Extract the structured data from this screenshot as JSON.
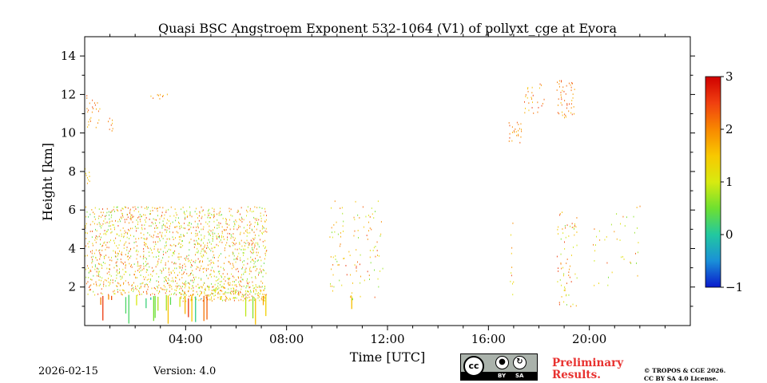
{
  "chart_data": {
    "type": "heatmap",
    "title": "Quasi BSC Angstroem Exponent 532-1064 (V1) of pollyxt_cge at Evora",
    "xlabel": "Time [UTC]",
    "ylabel": "Height [km]",
    "xlim_hours": [
      0,
      24
    ],
    "ylim_km": [
      0,
      15
    ],
    "x_ticks": [
      {
        "h": 4,
        "label": "04:00"
      },
      {
        "h": 8,
        "label": "08:00"
      },
      {
        "h": 12,
        "label": "12:00"
      },
      {
        "h": 16,
        "label": "16:00"
      },
      {
        "h": 20,
        "label": "20:00"
      }
    ],
    "y_ticks": [
      2,
      4,
      6,
      8,
      10,
      12,
      14
    ],
    "colorbar": {
      "min": -1,
      "max": 3,
      "ticks": [
        -1,
        0,
        1,
        2,
        3
      ],
      "tick_labels": [
        "−1",
        "0",
        "1",
        "2",
        "3"
      ],
      "colormap": [
        "#0a1acc",
        "#1a90d8",
        "#22c8a0",
        "#6ee030",
        "#d8ea10",
        "#f8c800",
        "#f88800",
        "#f04010",
        "#d00000"
      ]
    },
    "regions": [
      {
        "t": [
          0.0,
          7.2
        ],
        "h": [
          1.6,
          6.2
        ],
        "density": 0.5,
        "value": [
          0.3,
          2.6
        ],
        "style": "scatter"
      },
      {
        "t": [
          3.8,
          7.2
        ],
        "h": [
          1.3,
          2.1
        ],
        "density": 0.7,
        "value": [
          0.5,
          2.5
        ],
        "style": "dense"
      },
      {
        "t": [
          0.6,
          7.2
        ],
        "h": [
          0.0,
          1.6
        ],
        "density": 0.25,
        "value": [
          -0.5,
          2.7
        ],
        "style": "streaks"
      },
      {
        "t": [
          0.05,
          0.6
        ],
        "h": [
          10.3,
          12.0
        ],
        "density": 0.3,
        "value": [
          1.5,
          2.5
        ],
        "style": "scatter"
      },
      {
        "t": [
          0.9,
          1.1
        ],
        "h": [
          10.1,
          10.8
        ],
        "density": 0.5,
        "value": [
          1.5,
          2.5
        ],
        "style": "scatter"
      },
      {
        "t": [
          0.0,
          0.2
        ],
        "h": [
          7.4,
          8.3
        ],
        "density": 0.6,
        "value": [
          1.2,
          2.0
        ],
        "style": "scatter"
      },
      {
        "t": [
          2.6,
          3.3
        ],
        "h": [
          11.8,
          12.2
        ],
        "density": 0.5,
        "value": [
          1.5,
          2.6
        ],
        "style": "scatter"
      },
      {
        "t": [
          9.7,
          11.8
        ],
        "h": [
          1.5,
          6.5
        ],
        "density": 0.1,
        "value": [
          0.5,
          2.6
        ],
        "style": "scatter"
      },
      {
        "t": [
          10.5,
          10.7
        ],
        "h": [
          0.0,
          1.6
        ],
        "density": 0.6,
        "value": [
          0.0,
          2.0
        ],
        "style": "streaks"
      },
      {
        "t": [
          16.8,
          17.3
        ],
        "h": [
          9.5,
          10.6
        ],
        "density": 0.6,
        "value": [
          1.6,
          2.5
        ],
        "style": "scatter"
      },
      {
        "t": [
          18.7,
          19.4
        ],
        "h": [
          10.8,
          12.8
        ],
        "density": 0.4,
        "value": [
          1.5,
          2.6
        ],
        "style": "scatter"
      },
      {
        "t": [
          17.4,
          18.2
        ],
        "h": [
          11.0,
          12.6
        ],
        "density": 0.2,
        "value": [
          1.5,
          2.6
        ],
        "style": "scatter"
      },
      {
        "t": [
          18.7,
          19.5
        ],
        "h": [
          1.0,
          6.0
        ],
        "density": 0.2,
        "value": [
          0.5,
          2.6
        ],
        "style": "scatter"
      },
      {
        "t": [
          16.8,
          17.0
        ],
        "h": [
          1.5,
          5.5
        ],
        "density": 0.2,
        "value": [
          1.0,
          2.5
        ],
        "style": "scatter"
      },
      {
        "t": [
          20.0,
          22.0
        ],
        "h": [
          1.5,
          6.5
        ],
        "density": 0.05,
        "value": [
          0.5,
          2.5
        ],
        "style": "scatter"
      }
    ]
  },
  "footer": {
    "date": "2026-02-15",
    "version": "Version: 4.0",
    "preliminary_line1": "Preliminary",
    "preliminary_line2": "Results.",
    "copyright_line1": "© TROPOS & CGE 2026.",
    "copyright_line2": "CC BY SA 4.0 License.",
    "license_badge": {
      "cc": "cc",
      "by_icon": "person-icon",
      "sa_icon": "share-alike-icon",
      "by_label": "BY",
      "sa_label": "SA"
    }
  }
}
